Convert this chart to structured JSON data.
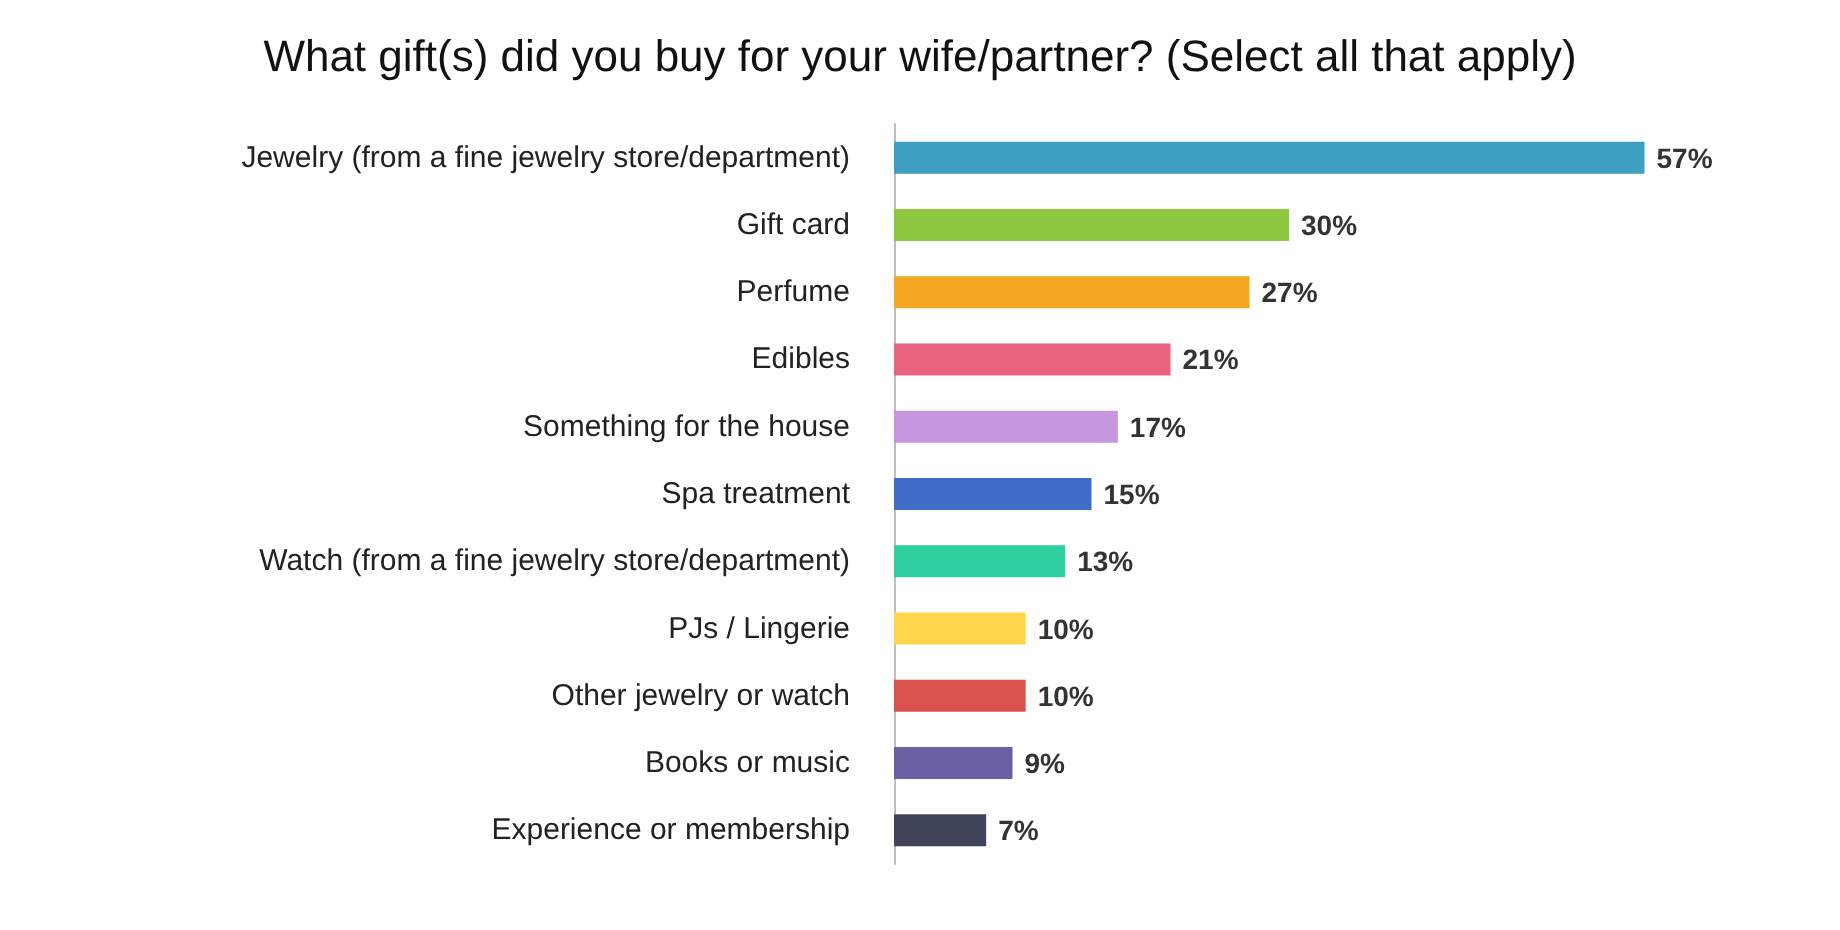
{
  "chart_data": {
    "type": "bar",
    "orientation": "horizontal",
    "title": "What gift(s) did you buy for your wife/partner? (Select all that apply)",
    "categories": [
      "Jewelry (from a fine jewelry store/department)",
      "Gift card",
      "Perfume",
      "Edibles",
      "Something for the house",
      "Spa treatment",
      "Watch (from a fine jewelry store/department)",
      "PJs / Lingerie",
      "Other jewelry or watch",
      "Books or music",
      "Experience or membership"
    ],
    "values": [
      57,
      30,
      27,
      21,
      17,
      15,
      13,
      10,
      10,
      9,
      7
    ],
    "value_labels": [
      "57%",
      "30%",
      "27%",
      "21%",
      "17%",
      "15%",
      "13%",
      "10%",
      "10%",
      "9%",
      "7%"
    ],
    "colors": [
      "#3f9fc0",
      "#8dc63f",
      "#f5a623",
      "#e9637f",
      "#c596de",
      "#3e6cc8",
      "#2fcfa1",
      "#fdd64b",
      "#d9534f",
      "#6b5fa3",
      "#40445a"
    ],
    "grid": false
  }
}
